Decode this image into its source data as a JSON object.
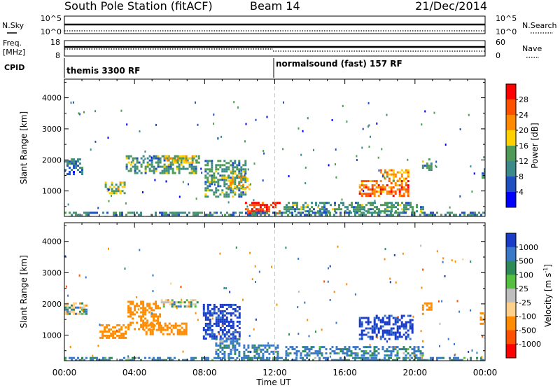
{
  "header": {
    "station": "South Pole Station (fitACF)",
    "beam": "Beam 14",
    "date": "21/Dec/2014"
  },
  "sky_panel": {
    "left_label": "N.Sky",
    "right_label": "N.Search",
    "ticks_left": [
      "10^5",
      "10^0"
    ],
    "ticks_right": [
      "10^5",
      "10^0"
    ]
  },
  "freq_panel": {
    "left_label_1": "Freq.",
    "left_label_2": "[MHz]",
    "right_label": "Nave",
    "ticks_left": [
      "18",
      "8"
    ],
    "ticks_right": [
      "60",
      "0"
    ]
  },
  "cpid": {
    "label": "CPID",
    "segments": [
      {
        "name": "themis 3300 RF",
        "start_hour": 0
      },
      {
        "name": "normalsound (fast) 157 RF",
        "start_hour": 12
      }
    ]
  },
  "x_axis": {
    "label": "Time UT",
    "ticks": [
      "00:00",
      "04:00",
      "08:00",
      "12:00",
      "16:00",
      "20:00",
      "00:00"
    ],
    "range_hours": [
      0,
      24
    ]
  },
  "chart_data": [
    {
      "type": "heatmap",
      "title": "",
      "quantity": "Power [dB]",
      "ylabel": "Slant Range [km]",
      "xlabel": "Time UT",
      "ylim": [
        180,
        4600
      ],
      "y_ticks": [
        1000,
        2000,
        3000,
        4000
      ],
      "x_ticks_hours": [
        0,
        4,
        8,
        12,
        16,
        20,
        24
      ],
      "colorbar": {
        "label": "Power [dB]",
        "ticks": [
          "4",
          "8",
          "12",
          "16",
          "20",
          "24",
          "28"
        ],
        "colors": [
          "#0000ff",
          "#1f4fc0",
          "#3d8a8a",
          "#4f9a56",
          "#ffd000",
          "#ff8a00",
          "#ff5000",
          "#ff0000"
        ]
      },
      "echo_regions": [
        {
          "t0": 0.0,
          "t1": 1.0,
          "r0": 1550,
          "r1": 2050,
          "value": 8
        },
        {
          "t0": 2.3,
          "t1": 3.4,
          "r0": 950,
          "r1": 1300,
          "value": 16
        },
        {
          "t0": 3.5,
          "t1": 7.5,
          "r0": 1600,
          "r1": 2150,
          "value": 12
        },
        {
          "t0": 5.7,
          "t1": 7.7,
          "r0": 1900,
          "r1": 2150,
          "value": 18
        },
        {
          "t0": 8.0,
          "t1": 10.3,
          "r0": 800,
          "r1": 2000,
          "value": 12
        },
        {
          "t0": 9.3,
          "t1": 10.6,
          "r0": 1050,
          "r1": 1500,
          "value": 18
        },
        {
          "t0": 10.3,
          "t1": 12.3,
          "r0": 250,
          "r1": 650,
          "value": 28
        },
        {
          "t0": 12.5,
          "t1": 20.5,
          "r0": 350,
          "r1": 650,
          "value": 12
        },
        {
          "t0": 16.8,
          "t1": 19.6,
          "r0": 850,
          "r1": 1350,
          "value": 24
        },
        {
          "t0": 18.0,
          "t1": 19.6,
          "r0": 1300,
          "r1": 1700,
          "value": 20
        },
        {
          "t0": 20.4,
          "t1": 20.9,
          "r0": 1650,
          "r1": 2050,
          "value": 12
        },
        {
          "t0": 23.8,
          "t1": 24.0,
          "r0": 1400,
          "r1": 1800,
          "value": 8
        },
        {
          "t0": 0.0,
          "t1": 24.0,
          "r0": 180,
          "r1": 330,
          "value": 10
        }
      ]
    },
    {
      "type": "heatmap",
      "title": "",
      "quantity": "Velocity [m s-1]",
      "ylabel": "Slant Range [km]",
      "xlabel": "Time UT",
      "ylim": [
        180,
        4600
      ],
      "y_ticks": [
        1000,
        2000,
        3000,
        4000
      ],
      "x_ticks_hours": [
        0,
        4,
        8,
        12,
        16,
        20,
        24
      ],
      "colorbar": {
        "label": "Velocity [m s",
        "label_sup": "-1",
        "label_end": "]",
        "ticks": [
          "1000",
          "500",
          "100",
          "25",
          "-25",
          "-100",
          "-500",
          "-1000"
        ],
        "colors": [
          "#1a3cc8",
          "#3a78c8",
          "#2e8b57",
          "#55c040",
          "#bebebe",
          "#ffd08a",
          "#ff8c00",
          "#ff5000",
          "#ff0000"
        ]
      },
      "echo_regions": [
        {
          "t0": 0.0,
          "t1": 1.2,
          "r0": 1650,
          "r1": 2050,
          "value": 0
        },
        {
          "t0": 2.0,
          "t1": 3.5,
          "r0": 900,
          "r1": 1350,
          "value": -300
        },
        {
          "t0": 3.6,
          "t1": 5.5,
          "r0": 1200,
          "r1": 2100,
          "value": -300
        },
        {
          "t0": 5.5,
          "t1": 7.6,
          "r0": 1900,
          "r1": 2150,
          "value": 0
        },
        {
          "t0": 4.5,
          "t1": 7.0,
          "r0": 1000,
          "r1": 1400,
          "value": -300
        },
        {
          "t0": 7.9,
          "t1": 10.0,
          "r0": 900,
          "r1": 2000,
          "value": 600
        },
        {
          "t0": 8.6,
          "t1": 10.0,
          "r0": 250,
          "r1": 900,
          "value": 150
        },
        {
          "t0": 10.2,
          "t1": 12.2,
          "r0": 250,
          "r1": 700,
          "value": 150
        },
        {
          "t0": 12.6,
          "t1": 20.5,
          "r0": 350,
          "r1": 650,
          "value": 150
        },
        {
          "t0": 16.8,
          "t1": 19.8,
          "r0": 900,
          "r1": 1650,
          "value": 600
        },
        {
          "t0": 20.4,
          "t1": 20.9,
          "r0": 1650,
          "r1": 2050,
          "value": -300
        },
        {
          "t0": 23.7,
          "t1": 24.0,
          "r0": 1350,
          "r1": 1800,
          "value": -300
        },
        {
          "t0": 0.0,
          "t1": 24.0,
          "r0": 180,
          "r1": 300,
          "value": 150
        }
      ]
    }
  ]
}
